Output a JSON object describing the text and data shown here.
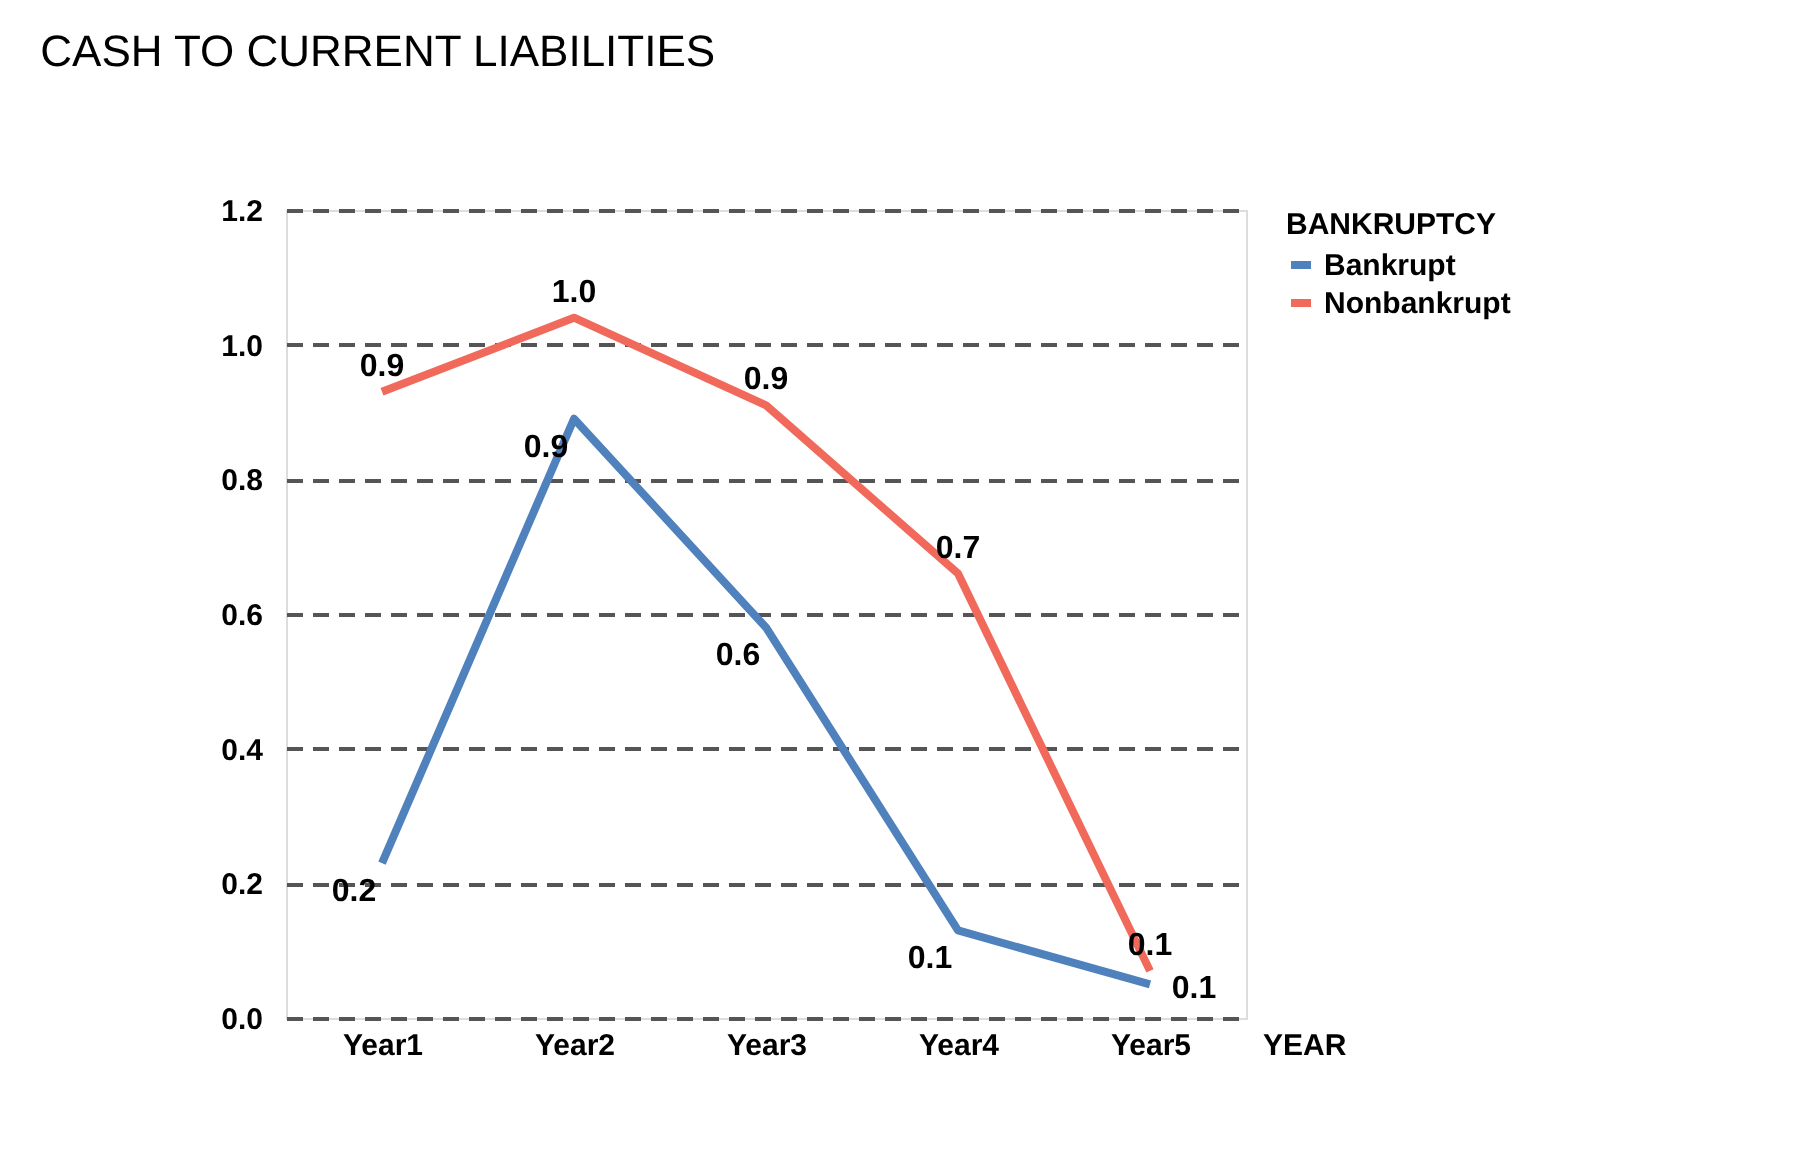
{
  "chart_data": {
    "type": "line",
    "title": "CASH TO CURRENT LIABILITIES",
    "xlabel": "YEAR",
    "legend_title": "BANKRUPTCY",
    "categories": [
      "Year1",
      "Year2",
      "Year3",
      "Year4",
      "Year5"
    ],
    "series": [
      {
        "name": "Bankrupt",
        "color": "#4f81bd",
        "values": [
          0.23,
          0.89,
          0.58,
          0.13,
          0.05
        ],
        "value_labels": [
          "0.2",
          "0.9",
          "0.6",
          "0.1",
          "0.1"
        ]
      },
      {
        "name": "Nonbankrupt",
        "color": "#f0695a",
        "values": [
          0.93,
          1.04,
          0.91,
          0.66,
          0.07
        ],
        "value_labels": [
          "0.9",
          "1.0",
          "0.9",
          "0.7",
          "0.1"
        ]
      }
    ],
    "ylim": [
      0,
      1.2
    ],
    "yticks": [
      {
        "value": 0,
        "label": "0.0"
      },
      0.2,
      0.4,
      0.6,
      0.8,
      {
        "value": 1,
        "label": "1.0"
      },
      1.2
    ],
    "grid": "y",
    "legend": "top right",
    "marker": "none",
    "line_style": "solid"
  }
}
